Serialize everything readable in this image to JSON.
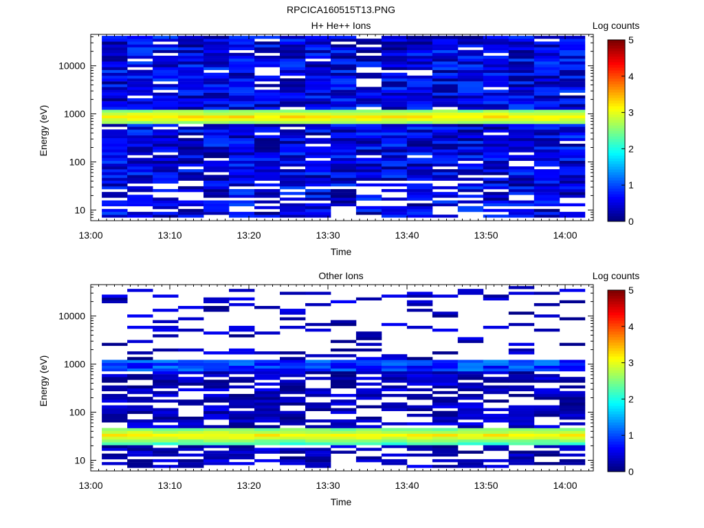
{
  "figure": {
    "title": "RPCICA160515T13.PNG"
  },
  "chart_data": [
    {
      "type": "heatmap",
      "title": "H+ He++ Ions",
      "xlabel": "Time",
      "ylabel": "Energy (eV)",
      "x_ticks": [
        "13:00",
        "13:10",
        "13:20",
        "13:30",
        "13:40",
        "13:50",
        "14:00"
      ],
      "x_range_minutes": [
        0,
        62.5
      ],
      "y_scale": "log",
      "y_ticks": [
        "10",
        "100",
        "1000",
        "10000"
      ],
      "y_range": [
        6,
        45000
      ],
      "colorbar": {
        "label": "Log counts",
        "ticks": [
          "0",
          "1",
          "2",
          "3",
          "4",
          "5"
        ],
        "range": [
          0,
          5
        ]
      },
      "peak_band": {
        "energy_low": 620,
        "energy_high": 1200,
        "peak_energy": 860,
        "peak_log_counts": 3.3
      },
      "background_level": {
        "energy_above": 1200,
        "energy_below": 620,
        "log_counts_range": [
          0,
          1.0
        ]
      }
    },
    {
      "type": "heatmap",
      "title": "Other Ions",
      "xlabel": "Time",
      "ylabel": "Energy (eV)",
      "x_ticks": [
        "13:00",
        "13:10",
        "13:20",
        "13:30",
        "13:40",
        "13:50",
        "14:00"
      ],
      "x_range_minutes": [
        0,
        62.5
      ],
      "y_scale": "log",
      "y_ticks": [
        "10",
        "100",
        "1000",
        "10000"
      ],
      "y_range": [
        6,
        45000
      ],
      "colorbar": {
        "label": "Log counts",
        "ticks": [
          "0",
          "1",
          "2",
          "3",
          "4",
          "5"
        ],
        "range": [
          0,
          5
        ]
      },
      "peak_band": {
        "energy_low": 22,
        "energy_high": 50,
        "peak_energy": 33,
        "peak_log_counts": 3.2
      },
      "secondary_band": {
        "energy_low": 700,
        "energy_high": 1150,
        "peak_log_counts": 1.3
      },
      "background_level": {
        "log_counts_range": [
          0,
          0.6
        ]
      }
    }
  ]
}
